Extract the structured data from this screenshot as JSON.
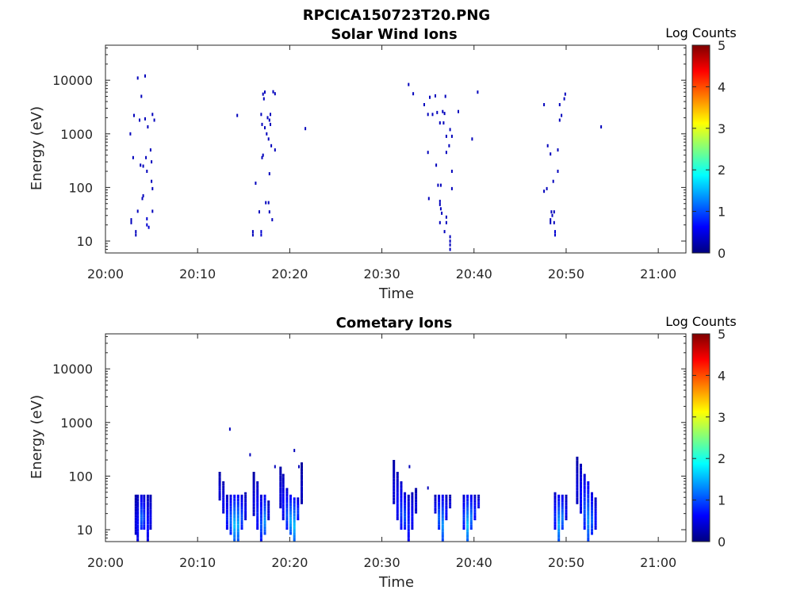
{
  "figure": {
    "title": "RPCICA150723T20.PNG"
  },
  "colors": {
    "colormap": [
      "#00007f",
      "#0000ff",
      "#007fff",
      "#00ffff",
      "#7fff7f",
      "#ffff00",
      "#ff7f00",
      "#ff0000",
      "#7f0000"
    ],
    "axes": "#262626"
  },
  "chart_data": [
    {
      "type": "heatmap",
      "title": "Solar Wind Ions",
      "xlabel": "Time",
      "ylabel": "Energy (eV)",
      "x_ticks": [
        "20:00",
        "20:10",
        "20:20",
        "20:30",
        "20:40",
        "20:50",
        "21:00"
      ],
      "y_ticks": [
        "10",
        "100",
        "1000",
        "10000"
      ],
      "y_scale": "log",
      "xlim_minutes": [
        0,
        63
      ],
      "ylim": [
        6,
        45000
      ],
      "colorbar": {
        "label": "Log Counts",
        "range": [
          0,
          5
        ],
        "ticks": [
          "0",
          "1",
          "2",
          "3",
          "4",
          "5"
        ]
      },
      "note_points": "each point: [minutes after 20:00, energy eV, log counts]",
      "points": [
        [
          3.5,
          11000,
          0.3
        ],
        [
          4.3,
          12000,
          0.3
        ],
        [
          3.9,
          5000,
          0.3
        ],
        [
          3.1,
          2200,
          0.3
        ],
        [
          3.7,
          1800,
          0.3
        ],
        [
          4.3,
          1900,
          0.3
        ],
        [
          4.6,
          1350,
          0.3
        ],
        [
          5.1,
          2300,
          0.3
        ],
        [
          5.3,
          1800,
          0.3
        ],
        [
          2.7,
          1000,
          0.3
        ],
        [
          3.0,
          360,
          0.3
        ],
        [
          3.8,
          260,
          0.3
        ],
        [
          4.1,
          250,
          0.3
        ],
        [
          4.4,
          360,
          0.3
        ],
        [
          4.9,
          500,
          0.3
        ],
        [
          5.0,
          300,
          0.3
        ],
        [
          4.5,
          200,
          0.3
        ],
        [
          5.0,
          130,
          0.3
        ],
        [
          5.1,
          95,
          0.3
        ],
        [
          4.1,
          70,
          0.3
        ],
        [
          4.0,
          62,
          0.3
        ],
        [
          3.5,
          36,
          0.3
        ],
        [
          5.1,
          36,
          0.3
        ],
        [
          2.8,
          25,
          0.3
        ],
        [
          2.8,
          22,
          0.3
        ],
        [
          4.5,
          26,
          0.4
        ],
        [
          4.5,
          20,
          0.4
        ],
        [
          4.7,
          18,
          0.4
        ],
        [
          3.3,
          15,
          0.3
        ],
        [
          3.3,
          13,
          0.3
        ],
        [
          14.3,
          2200,
          0.3
        ],
        [
          16.3,
          120,
          0.3
        ],
        [
          16.0,
          15,
          0.3
        ],
        [
          16.0,
          13,
          0.3
        ],
        [
          16.7,
          35,
          0.3
        ],
        [
          16.9,
          2300,
          0.3
        ],
        [
          17.1,
          5500,
          0.3
        ],
        [
          17.2,
          4500,
          0.3
        ],
        [
          17.3,
          6000,
          0.3
        ],
        [
          17.0,
          1500,
          0.3
        ],
        [
          17.3,
          1300,
          0.3
        ],
        [
          17.8,
          1800,
          0.3
        ],
        [
          17.9,
          1500,
          0.3
        ],
        [
          17.6,
          2000,
          0.3
        ],
        [
          17.9,
          2300,
          0.3
        ],
        [
          17.5,
          1000,
          0.3
        ],
        [
          17.7,
          800,
          0.3
        ],
        [
          18.0,
          600,
          0.3
        ],
        [
          17.1,
          400,
          0.3
        ],
        [
          17.0,
          360,
          0.3
        ],
        [
          18.4,
          500,
          0.3
        ],
        [
          17.8,
          180,
          0.3
        ],
        [
          17.4,
          52,
          0.3
        ],
        [
          17.7,
          52,
          0.3
        ],
        [
          17.8,
          35,
          0.3
        ],
        [
          18.1,
          25,
          0.3
        ],
        [
          16.9,
          15,
          0.4
        ],
        [
          16.9,
          13,
          0.4
        ],
        [
          18.2,
          6100,
          0.3
        ],
        [
          18.4,
          5600,
          0.3
        ],
        [
          21.7,
          1250,
          0.3
        ],
        [
          32.9,
          8300,
          0.3
        ],
        [
          33.4,
          5600,
          0.3
        ],
        [
          34.6,
          3500,
          0.3
        ],
        [
          35.2,
          4800,
          0.3
        ],
        [
          35.8,
          5100,
          0.3
        ],
        [
          35.0,
          2300,
          0.3
        ],
        [
          35.5,
          2300,
          0.3
        ],
        [
          36.0,
          2500,
          0.3
        ],
        [
          36.6,
          2600,
          0.3
        ],
        [
          36.8,
          2400,
          0.3
        ],
        [
          36.9,
          5000,
          0.3
        ],
        [
          36.3,
          1600,
          0.3
        ],
        [
          36.7,
          1600,
          0.3
        ],
        [
          37.4,
          1200,
          0.3
        ],
        [
          37.0,
          900,
          0.3
        ],
        [
          37.6,
          900,
          0.3
        ],
        [
          38.3,
          2600,
          0.3
        ],
        [
          40.4,
          6000,
          0.3
        ],
        [
          39.8,
          800,
          0.3
        ],
        [
          37.3,
          600,
          0.3
        ],
        [
          35.0,
          450,
          0.3
        ],
        [
          37.0,
          450,
          0.3
        ],
        [
          35.9,
          260,
          0.3
        ],
        [
          37.6,
          200,
          0.3
        ],
        [
          36.1,
          110,
          0.3
        ],
        [
          36.4,
          110,
          0.3
        ],
        [
          37.6,
          95,
          0.3
        ],
        [
          35.1,
          62,
          0.3
        ],
        [
          36.3,
          55,
          0.3
        ],
        [
          36.3,
          48,
          0.3
        ],
        [
          36.4,
          40,
          0.3
        ],
        [
          36.5,
          33,
          0.3
        ],
        [
          37.0,
          28,
          0.3
        ],
        [
          36.3,
          22,
          0.3
        ],
        [
          37.0,
          22,
          0.3
        ],
        [
          36.8,
          15,
          0.3
        ],
        [
          37.4,
          12,
          0.3
        ],
        [
          37.4,
          10,
          0.3
        ],
        [
          37.4,
          8.5,
          0.3
        ],
        [
          37.4,
          7,
          0.3
        ],
        [
          47.6,
          3500,
          0.3
        ],
        [
          49.3,
          3500,
          0.3
        ],
        [
          49.5,
          2200,
          0.3
        ],
        [
          49.3,
          1800,
          0.3
        ],
        [
          48.0,
          600,
          0.3
        ],
        [
          49.1,
          500,
          0.3
        ],
        [
          48.3,
          420,
          0.3
        ],
        [
          49.1,
          200,
          0.3
        ],
        [
          48.6,
          130,
          0.3
        ],
        [
          47.9,
          95,
          0.3
        ],
        [
          47.6,
          85,
          0.3
        ],
        [
          48.4,
          35,
          0.3
        ],
        [
          48.7,
          35,
          0.3
        ],
        [
          48.5,
          30,
          0.3
        ],
        [
          48.3,
          25,
          0.3
        ],
        [
          48.3,
          22,
          0.3
        ],
        [
          48.7,
          22,
          0.3
        ],
        [
          48.8,
          15,
          0.4
        ],
        [
          48.8,
          13,
          0.4
        ],
        [
          49.9,
          5500,
          0.3
        ],
        [
          49.8,
          4500,
          0.3
        ],
        [
          53.8,
          1350,
          0.3
        ]
      ]
    },
    {
      "type": "heatmap",
      "title": "Cometary Ions",
      "xlabel": "Time",
      "ylabel": "Energy (eV)",
      "x_ticks": [
        "20:00",
        "20:10",
        "20:20",
        "20:30",
        "20:40",
        "20:50",
        "21:00"
      ],
      "y_ticks": [
        "10",
        "100",
        "1000",
        "10000"
      ],
      "y_scale": "log",
      "xlim_minutes": [
        0,
        63
      ],
      "ylim": [
        6,
        45000
      ],
      "colorbar": {
        "label": "Log Counts",
        "range": [
          0,
          5
        ],
        "ticks": [
          "0",
          "1",
          "2",
          "3",
          "4",
          "5"
        ]
      },
      "note_columns": "each column: [minutes after 20:00, lowest energy eV, highest energy eV, typical log counts]",
      "columns": [
        [
          3.3,
          8,
          45,
          0.4
        ],
        [
          3.5,
          6,
          45,
          0.6
        ],
        [
          3.9,
          10,
          45,
          1.0
        ],
        [
          4.2,
          10,
          45,
          0.8
        ],
        [
          4.6,
          6,
          45,
          0.6
        ],
        [
          4.9,
          10,
          45,
          0.5
        ],
        [
          12.4,
          35,
          120,
          0.4
        ],
        [
          12.8,
          20,
          80,
          0.5
        ],
        [
          13.2,
          10,
          45,
          0.7
        ],
        [
          13.6,
          8,
          45,
          1.0
        ],
        [
          14.0,
          6,
          45,
          1.4
        ],
        [
          14.4,
          6,
          45,
          1.3
        ],
        [
          14.8,
          10,
          45,
          0.9
        ],
        [
          15.2,
          15,
          50,
          0.5
        ],
        [
          16.1,
          18,
          120,
          0.4
        ],
        [
          16.5,
          10,
          80,
          0.7
        ],
        [
          16.9,
          6,
          45,
          0.9
        ],
        [
          17.3,
          8,
          45,
          1.2
        ],
        [
          17.7,
          15,
          35,
          0.4
        ],
        [
          19.0,
          25,
          150,
          0.4
        ],
        [
          19.3,
          15,
          110,
          0.6
        ],
        [
          19.7,
          10,
          60,
          0.9
        ],
        [
          20.1,
          8,
          45,
          1.3
        ],
        [
          20.5,
          6,
          40,
          1.4
        ],
        [
          20.9,
          15,
          40,
          0.8
        ],
        [
          21.3,
          30,
          180,
          0.3
        ],
        [
          31.3,
          30,
          200,
          0.4
        ],
        [
          31.7,
          15,
          120,
          0.6
        ],
        [
          32.1,
          10,
          80,
          0.8
        ],
        [
          32.5,
          10,
          50,
          0.9
        ],
        [
          32.9,
          6,
          45,
          0.7
        ],
        [
          33.3,
          10,
          50,
          0.6
        ],
        [
          33.7,
          20,
          60,
          0.4
        ],
        [
          35.8,
          20,
          45,
          0.5
        ],
        [
          36.2,
          10,
          45,
          1.0
        ],
        [
          36.6,
          6,
          45,
          1.2
        ],
        [
          37.0,
          15,
          45,
          0.6
        ],
        [
          37.4,
          25,
          45,
          0.4
        ],
        [
          38.9,
          10,
          45,
          0.8
        ],
        [
          39.3,
          6,
          45,
          1.4
        ],
        [
          39.7,
          10,
          45,
          1.1
        ],
        [
          40.1,
          15,
          45,
          0.7
        ],
        [
          40.5,
          25,
          45,
          0.5
        ],
        [
          48.8,
          10,
          50,
          0.7
        ],
        [
          49.2,
          6,
          45,
          1.3
        ],
        [
          49.6,
          10,
          45,
          1.1
        ],
        [
          50.0,
          15,
          45,
          0.5
        ],
        [
          51.2,
          30,
          230,
          0.4
        ],
        [
          51.6,
          20,
          170,
          0.6
        ],
        [
          52.0,
          10,
          110,
          0.9
        ],
        [
          52.4,
          6,
          80,
          1.2
        ],
        [
          52.8,
          8,
          50,
          1.0
        ],
        [
          53.2,
          10,
          40,
          0.6
        ]
      ],
      "isolated_points": [
        [
          13.5,
          750,
          0.3
        ],
        [
          15.7,
          250,
          0.3
        ],
        [
          20.5,
          300,
          0.3
        ],
        [
          18.4,
          150,
          0.3
        ],
        [
          21.0,
          150,
          0.3
        ],
        [
          35.0,
          60,
          0.3
        ],
        [
          33.0,
          150,
          0.3
        ]
      ]
    }
  ]
}
